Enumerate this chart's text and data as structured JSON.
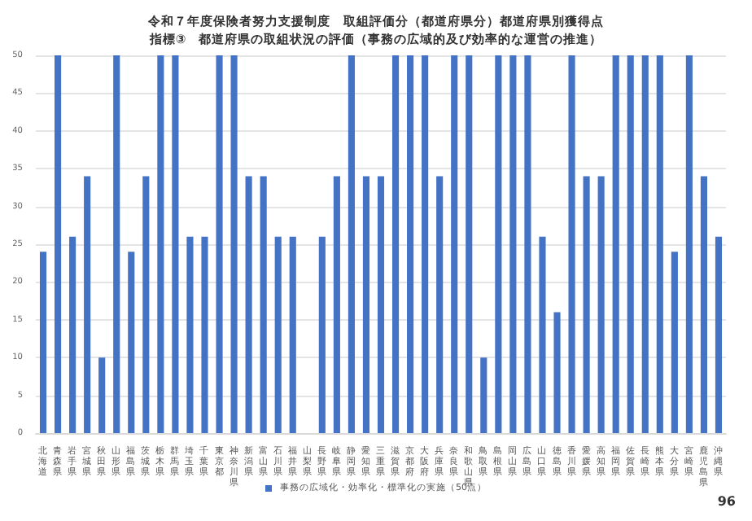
{
  "chart_data": {
    "type": "bar",
    "title": "令和７年度保険者努力支援制度　取組評価分（都道府県分）都道府県別獲得点",
    "subtitle": "指標③　都道府県の取組状況の評価（事務の広域的及び効率的な運営の推進）",
    "categories": [
      "北海道",
      "青森県",
      "岩手県",
      "宮城県",
      "秋田県",
      "山形県",
      "福島県",
      "茨城県",
      "栃木県",
      "群馬県",
      "埼玉県",
      "千葉県",
      "東京都",
      "神奈川県",
      "新潟県",
      "富山県",
      "石川県",
      "福井県",
      "山梨県",
      "長野県",
      "岐阜県",
      "静岡県",
      "愛知県",
      "三重県",
      "滋賀県",
      "京都府",
      "大阪府",
      "兵庫県",
      "奈良県",
      "和歌山県",
      "鳥取県",
      "島根県",
      "岡山県",
      "広島県",
      "山口県",
      "徳島県",
      "香川県",
      "愛媛県",
      "高知県",
      "福岡県",
      "佐賀県",
      "長崎県",
      "熊本県",
      "大分県",
      "宮崎県",
      "鹿児島県",
      "沖縄県"
    ],
    "series": [
      {
        "name": "事務の広域化・効率化・標準化の実施（50点）",
        "color": "#4472c4",
        "values": [
          24,
          50,
          26,
          34,
          10,
          50,
          24,
          34,
          50,
          50,
          26,
          26,
          50,
          50,
          34,
          34,
          26,
          26,
          0,
          26,
          34,
          50,
          34,
          34,
          50,
          50,
          50,
          34,
          50,
          50,
          10,
          50,
          50,
          50,
          26,
          16,
          50,
          34,
          34,
          50,
          50,
          50,
          50,
          24,
          50,
          34,
          26
        ]
      }
    ],
    "ylim": [
      0,
      50
    ],
    "yticks": [
      0,
      5,
      10,
      15,
      20,
      25,
      30,
      35,
      40,
      45,
      50
    ],
    "grid": "y",
    "legend": "bottom",
    "annotations": [
      "96"
    ]
  }
}
